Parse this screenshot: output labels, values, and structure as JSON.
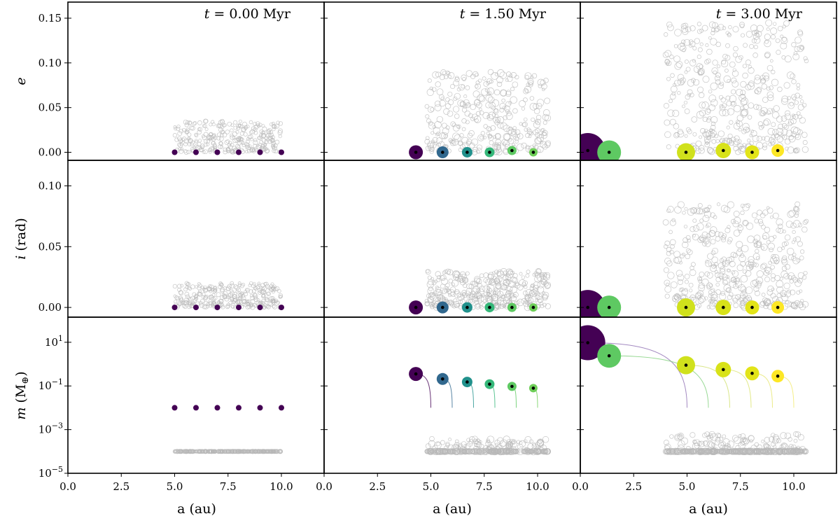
{
  "chart_data": {
    "type": "scatter",
    "title": "",
    "xlabel": "a (au)",
    "xlim": [
      0,
      12
    ],
    "x_ticks": [
      "0.0",
      "2.5",
      "5.0",
      "7.5",
      "10.0"
    ],
    "x_tick_values": [
      0,
      2.5,
      5,
      7.5,
      10
    ],
    "row_labels": [
      "e",
      "i (rad)",
      "m (M⊕)"
    ],
    "row_label_parts": [
      {
        "sym": "e",
        "unit": ""
      },
      {
        "sym": "i",
        "unit": "(rad)"
      },
      {
        "sym": "m",
        "unit": "(M",
        "sub": "⊕",
        "close": ")"
      }
    ],
    "rows": [
      {
        "name": "e",
        "scale": "linear",
        "ylim": [
          -0.009,
          0.168
        ],
        "ticks": [
          0,
          0.05,
          0.1,
          0.15
        ],
        "tick_labels": [
          "0.00",
          "0.05",
          "0.10",
          "0.15"
        ]
      },
      {
        "name": "i",
        "scale": "linear",
        "ylim": [
          -0.008,
          0.121
        ],
        "ticks": [
          0,
          0.05,
          0.1
        ],
        "tick_labels": [
          "0.00",
          "0.05",
          "0.10"
        ]
      },
      {
        "name": "m",
        "scale": "log",
        "ylim": [
          -5,
          2.15
        ],
        "ticks": [
          1,
          -1,
          -3,
          -5
        ],
        "tick_labels": [
          "10",
          "10",
          "10",
          "10"
        ],
        "tick_exponents": [
          "1",
          "−1",
          "−3",
          "−5"
        ]
      }
    ],
    "panels": [
      {
        "time_label": "t = 0.00 Myr",
        "time_sym": "t",
        "time_rest": " = 0.00 Myr",
        "planets": [
          {
            "a": 5.0,
            "e": 0.0,
            "i": 0.0,
            "logm": -2.0,
            "size": 4,
            "color": "#440154",
            "dot": false
          },
          {
            "a": 6.0,
            "e": 0.0,
            "i": 0.0,
            "logm": -2.0,
            "size": 4,
            "color": "#440154",
            "dot": false
          },
          {
            "a": 7.0,
            "e": 0.0,
            "i": 0.0,
            "logm": -2.0,
            "size": 4,
            "color": "#440154",
            "dot": false
          },
          {
            "a": 8.0,
            "e": 0.0,
            "i": 0.0,
            "logm": -2.0,
            "size": 4,
            "color": "#440154",
            "dot": false
          },
          {
            "a": 9.0,
            "e": 0.0,
            "i": 0.0,
            "logm": -2.0,
            "size": 4,
            "color": "#440154",
            "dot": false
          },
          {
            "a": 10.0,
            "e": 0.0,
            "i": 0.0,
            "logm": -2.0,
            "size": 4,
            "color": "#440154",
            "dot": false
          }
        ],
        "planetesimals": {
          "a_range": [
            5.0,
            10.0
          ],
          "e_range": [
            0.0,
            0.035
          ],
          "i_range": [
            0.0,
            0.02
          ],
          "logm": -4.0,
          "count": 300,
          "logm_spread": 0.0
        },
        "tracks": []
      },
      {
        "time_label": "t = 1.50 Myr",
        "time_sym": "t",
        "time_rest": " = 1.50 Myr",
        "planets": [
          {
            "a": 4.3,
            "e": 0.0,
            "i": 0.0,
            "logm": -0.45,
            "size": 10,
            "color": "#440154",
            "dot": true
          },
          {
            "a": 5.55,
            "e": 0.0,
            "i": 0.0,
            "logm": -0.68,
            "size": 8.5,
            "color": "#31688e",
            "dot": true
          },
          {
            "a": 6.7,
            "e": 0.0,
            "i": 0.0,
            "logm": -0.82,
            "size": 7.5,
            "color": "#21918c",
            "dot": true
          },
          {
            "a": 7.75,
            "e": 0.0,
            "i": 0.0,
            "logm": -0.92,
            "size": 7,
            "color": "#35b779",
            "dot": true
          },
          {
            "a": 8.8,
            "e": 0.002,
            "i": 0.0,
            "logm": -1.02,
            "size": 6.5,
            "color": "#5ec962",
            "dot": true
          },
          {
            "a": 9.8,
            "e": 0.0,
            "i": 0.0,
            "logm": -1.1,
            "size": 6,
            "color": "#6ece58",
            "dot": true
          }
        ],
        "planetesimals": {
          "a_range": [
            4.8,
            10.5
          ],
          "e_range": [
            0.0,
            0.09
          ],
          "i_range": [
            0.0,
            0.03
          ],
          "logm": -4.0,
          "count": 350,
          "logm_spread": 0.6
        },
        "tracks": [
          {
            "a_start": 5.0,
            "a_end": 4.3,
            "logm_end": -0.45,
            "color": "#440154"
          },
          {
            "a_start": 6.0,
            "a_end": 5.55,
            "logm_end": -0.68,
            "color": "#31688e"
          },
          {
            "a_start": 7.0,
            "a_end": 6.7,
            "logm_end": -0.82,
            "color": "#21918c"
          },
          {
            "a_start": 8.0,
            "a_end": 7.75,
            "logm_end": -0.92,
            "color": "#35b779"
          },
          {
            "a_start": 9.0,
            "a_end": 8.8,
            "logm_end": -1.02,
            "color": "#5ec962"
          },
          {
            "a_start": 10.0,
            "a_end": 9.8,
            "logm_end": -1.1,
            "color": "#6ece58"
          }
        ]
      },
      {
        "time_label": "t = 3.00 Myr",
        "time_sym": "t",
        "time_rest": " = 3.00 Myr",
        "planets": [
          {
            "a": 0.35,
            "e": 0.002,
            "i": 0.0,
            "logm": 0.98,
            "size": 25,
            "color": "#440154",
            "dot": true
          },
          {
            "a": 1.35,
            "e": 0.0,
            "i": 0.0,
            "logm": 0.38,
            "size": 17,
            "color": "#5ec962",
            "dot": true
          },
          {
            "a": 4.95,
            "e": 0.0,
            "i": 0.0,
            "logm": -0.05,
            "size": 13,
            "color": "#d0e11c",
            "dot": true
          },
          {
            "a": 6.7,
            "e": 0.002,
            "i": 0.0,
            "logm": -0.25,
            "size": 11,
            "color": "#d8e219",
            "dot": true
          },
          {
            "a": 8.05,
            "e": 0.0,
            "i": 0.0,
            "logm": -0.42,
            "size": 10,
            "color": "#e2e418",
            "dot": true
          },
          {
            "a": 9.25,
            "e": 0.002,
            "i": 0.0,
            "logm": -0.55,
            "size": 9,
            "color": "#fde725",
            "dot": true
          }
        ],
        "planetesimals": {
          "a_range": [
            4.0,
            10.6
          ],
          "e_range": [
            0.0,
            0.145
          ],
          "i_range": [
            0.0,
            0.085
          ],
          "logm": -4.0,
          "count": 450,
          "logm_spread": 0.8
        },
        "tracks": [
          {
            "a_start": 5.0,
            "a_end": 0.35,
            "logm_end": 0.98,
            "color": "#8c6bb1"
          },
          {
            "a_start": 6.0,
            "a_end": 1.35,
            "logm_end": 0.38,
            "color": "#7fcf7a"
          },
          {
            "a_start": 7.0,
            "a_end": 4.95,
            "logm_end": -0.05,
            "color": "#cfe06a"
          },
          {
            "a_start": 8.0,
            "a_end": 6.7,
            "logm_end": -0.25,
            "color": "#dbe36a"
          },
          {
            "a_start": 9.0,
            "a_end": 8.05,
            "logm_end": -0.42,
            "color": "#e6e66a"
          },
          {
            "a_start": 10.0,
            "a_end": 9.25,
            "logm_end": -0.55,
            "color": "#f2ea6a"
          }
        ]
      }
    ]
  }
}
